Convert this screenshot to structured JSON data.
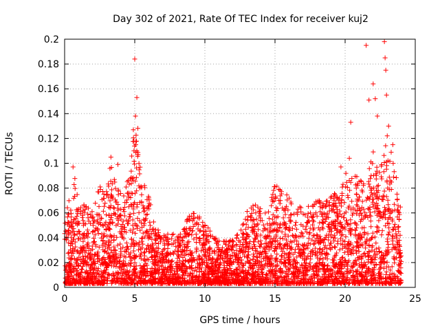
{
  "chart_data": {
    "type": "scatter",
    "title": "Day 302 of 2021, Rate Of TEC Index for receiver kuj2",
    "xlabel": "GPS time / hours",
    "ylabel": "ROTI / TECUs",
    "xlim": [
      0,
      25
    ],
    "ylim": [
      0,
      0.2
    ],
    "xticks": [
      "0",
      "5",
      "10",
      "15",
      "20",
      "25"
    ],
    "yticks": [
      "0",
      "0.02",
      "0.04",
      "0.06",
      "0.08",
      "0.1",
      "0.12",
      "0.14",
      "0.16",
      "0.18",
      "0.2"
    ],
    "grid": true,
    "marker": "+",
    "color": "#ff0000",
    "x_range_of_data": [
      0,
      24
    ],
    "envelope": {
      "hours": [
        0,
        0.25,
        0.5,
        0.75,
        1,
        1.5,
        2,
        2.5,
        3,
        3.25,
        3.5,
        3.75,
        4,
        4.5,
        5,
        5.25,
        5.5,
        6,
        6.5,
        7,
        7.5,
        8,
        8.5,
        9,
        9.5,
        10,
        10.5,
        11,
        11.5,
        12,
        12.5,
        13,
        13.5,
        14,
        14.5,
        15,
        15.5,
        16,
        16.5,
        17,
        17.5,
        18,
        18.5,
        19,
        19.5,
        20,
        20.5,
        21,
        21.5,
        22,
        22.5,
        23,
        23.5,
        24
      ],
      "typical_max_roti": [
        0.045,
        0.07,
        0.06,
        0.09,
        0.06,
        0.065,
        0.06,
        0.08,
        0.075,
        0.1,
        0.09,
        0.085,
        0.08,
        0.085,
        0.125,
        0.13,
        0.085,
        0.07,
        0.045,
        0.04,
        0.045,
        0.04,
        0.045,
        0.06,
        0.055,
        0.05,
        0.04,
        0.035,
        0.035,
        0.035,
        0.045,
        0.06,
        0.065,
        0.06,
        0.06,
        0.08,
        0.075,
        0.07,
        0.065,
        0.06,
        0.065,
        0.07,
        0.065,
        0.075,
        0.07,
        0.09,
        0.09,
        0.085,
        0.08,
        0.11,
        0.09,
        0.12,
        0.1,
        0.06
      ]
    },
    "peaks": [
      {
        "x": 5.0,
        "y": 0.184
      },
      {
        "x": 5.15,
        "y": 0.153
      },
      {
        "x": 5.05,
        "y": 0.138
      },
      {
        "x": 4.9,
        "y": 0.127
      },
      {
        "x": 3.3,
        "y": 0.105
      },
      {
        "x": 0.6,
        "y": 0.097
      },
      {
        "x": 3.8,
        "y": 0.099
      },
      {
        "x": 15.0,
        "y": 0.081
      },
      {
        "x": 19.7,
        "y": 0.097
      },
      {
        "x": 20.3,
        "y": 0.104
      },
      {
        "x": 20.4,
        "y": 0.133
      },
      {
        "x": 21.5,
        "y": 0.195
      },
      {
        "x": 21.7,
        "y": 0.151
      },
      {
        "x": 22.0,
        "y": 0.164
      },
      {
        "x": 22.15,
        "y": 0.152
      },
      {
        "x": 22.3,
        "y": 0.138
      },
      {
        "x": 22.8,
        "y": 0.198
      },
      {
        "x": 22.85,
        "y": 0.185
      },
      {
        "x": 22.9,
        "y": 0.175
      },
      {
        "x": 22.95,
        "y": 0.155
      },
      {
        "x": 23.1,
        "y": 0.13
      },
      {
        "x": 23.4,
        "y": 0.115
      }
    ]
  }
}
